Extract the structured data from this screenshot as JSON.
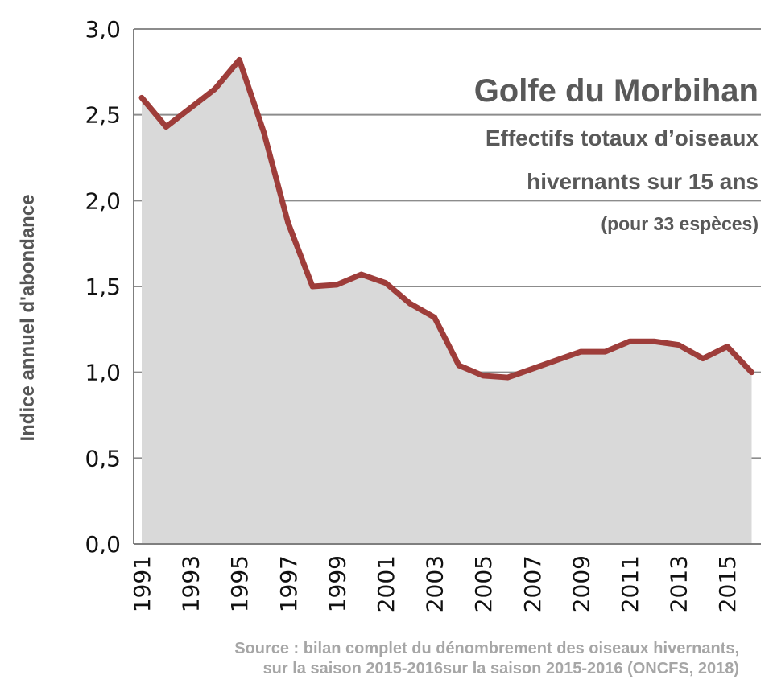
{
  "chart_data": {
    "type": "area",
    "title": "Golfe du Morbihan",
    "subtitle_line1": "Effectifs totaux d’oiseaux",
    "subtitle_line2": "hivernants sur 15 ans",
    "subtitle_line3": "(pour 33 espèces)",
    "ylabel": "Indice annuel d'abondance",
    "xlabel": "",
    "ylim": [
      0,
      3
    ],
    "yticks": [
      "0,0",
      "0,5",
      "1,0",
      "1,5",
      "2,0",
      "2,5",
      "3,0"
    ],
    "xticks": [
      "1991",
      "1993",
      "1995",
      "1997",
      "1999",
      "2001",
      "2003",
      "2005",
      "2007",
      "2009",
      "2011",
      "2013",
      "2015"
    ],
    "grid": true,
    "series": [
      {
        "name": "Indice annuel d'abondance",
        "x": [
          1991,
          1992,
          1993,
          1994,
          1995,
          1996,
          1997,
          1998,
          1999,
          2000,
          2001,
          2002,
          2003,
          2004,
          2005,
          2006,
          2007,
          2008,
          2009,
          2010,
          2011,
          2012,
          2013,
          2014,
          2015,
          2016
        ],
        "values": [
          2.6,
          2.43,
          2.54,
          2.65,
          2.82,
          2.4,
          1.87,
          1.5,
          1.51,
          1.57,
          1.52,
          1.4,
          1.32,
          1.04,
          0.98,
          0.97,
          1.02,
          1.07,
          1.12,
          1.12,
          1.18,
          1.18,
          1.16,
          1.08,
          1.15,
          1.0
        ],
        "line_color": "#9e3d3a",
        "fill_color": "#d9d9d9"
      }
    ],
    "source_line1": "Source :  bilan complet du dénombrement des oiseaux hivernants,",
    "source_line2": "sur la saison 2015-2016sur la saison 2015-2016 (ONCFS, 2018)"
  }
}
